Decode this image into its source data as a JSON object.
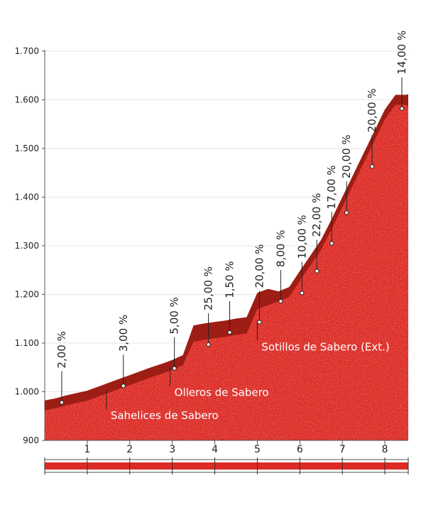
{
  "chart_data": {
    "type": "area",
    "title": "",
    "xlabel": "",
    "ylabel": "",
    "xlim": [
      0,
      8.55
    ],
    "ylim": [
      900,
      1700
    ],
    "yticks": [
      900,
      1000,
      1100,
      1200,
      1300,
      1400,
      1500,
      1600,
      1700
    ],
    "ytick_labels": [
      "900",
      "1.000",
      "1.100",
      "1.200",
      "1.300",
      "1.400",
      "1.500",
      "1.600",
      "1.700"
    ],
    "xticks": [
      1,
      2,
      3,
      4,
      5,
      6,
      7,
      8
    ],
    "xtick_labels": [
      "1",
      "2",
      "3",
      "4",
      "5",
      "6",
      "7",
      "8"
    ],
    "grid": true,
    "colors": {
      "fill": "#dc2a24",
      "road": "#9e1d14",
      "marker_text": "#222222",
      "highlight": "#e02a21",
      "stripe": "#dc2a24"
    },
    "profile": {
      "x": [
        0,
        0.25,
        0.5,
        0.75,
        1.0,
        1.25,
        1.5,
        1.75,
        2.0,
        2.25,
        2.5,
        2.75,
        3.0,
        3.25,
        3.5,
        3.75,
        4.0,
        4.25,
        4.5,
        4.75,
        5.0,
        5.25,
        5.5,
        5.75,
        6.0,
        6.25,
        6.5,
        6.75,
        7.0,
        7.25,
        7.5,
        7.75,
        8.0,
        8.25,
        8.5
      ],
      "y": [
        972,
        976,
        982,
        987,
        992,
        1000,
        1008,
        1016,
        1024,
        1032,
        1040,
        1047,
        1055,
        1065,
        1113,
        1117,
        1120,
        1123,
        1127,
        1130,
        1180,
        1188,
        1196,
        1205,
        1238,
        1270,
        1302,
        1345,
        1390,
        1435,
        1480,
        1525,
        1570,
        1600,
        1600
      ]
    },
    "markers": [
      {
        "x": 0.4,
        "elev": 978,
        "label": "2,00 %",
        "highlight": false
      },
      {
        "x": 1.85,
        "elev": 1012,
        "label": "3,00 %",
        "highlight": false
      },
      {
        "x": 3.05,
        "elev": 1048,
        "label": "5,00 %",
        "highlight": false
      },
      {
        "x": 3.85,
        "elev": 1097,
        "label": "25,00 %",
        "highlight": true
      },
      {
        "x": 4.35,
        "elev": 1122,
        "label": "1,50 %",
        "highlight": false
      },
      {
        "x": 5.05,
        "elev": 1143,
        "label": "20,00 %",
        "highlight": false
      },
      {
        "x": 5.55,
        "elev": 1186,
        "label": "8,00 %",
        "highlight": false
      },
      {
        "x": 6.05,
        "elev": 1203,
        "label": "10,00 %",
        "highlight": false
      },
      {
        "x": 6.4,
        "elev": 1248,
        "label": "22,00 %",
        "highlight": false
      },
      {
        "x": 6.75,
        "elev": 1305,
        "label": "17,00 %",
        "highlight": false
      },
      {
        "x": 7.1,
        "elev": 1368,
        "label": "20,00 %",
        "highlight": false
      },
      {
        "x": 7.7,
        "elev": 1463,
        "label": "20,00 %",
        "highlight": false
      },
      {
        "x": 8.4,
        "elev": 1582,
        "label": "14,00 %",
        "highlight": false
      }
    ],
    "places": [
      {
        "x": 1.45,
        "elev": 1002,
        "label": "Sahelices de Sabero"
      },
      {
        "x": 2.95,
        "elev": 1050,
        "label": "Olleros de Sabero"
      },
      {
        "x": 5.0,
        "elev": 1143,
        "label": "Sotillos de Sabero (Ext.)"
      }
    ]
  }
}
